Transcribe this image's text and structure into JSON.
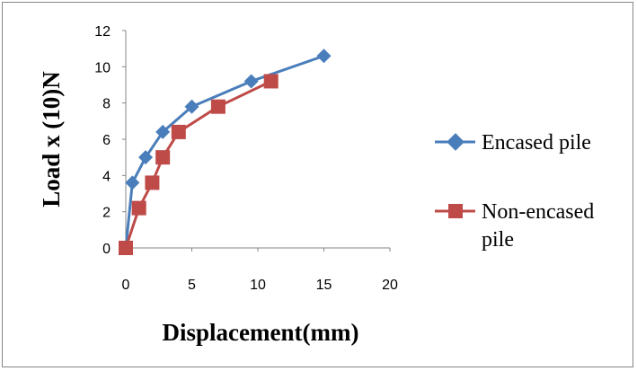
{
  "chart_data": {
    "type": "line",
    "title": "",
    "xlabel": "Displacement(mm)",
    "ylabel": "Load x (10)N",
    "xlim": [
      0,
      20
    ],
    "ylim": [
      0,
      12
    ],
    "x_ticks": [
      0,
      5,
      10,
      15,
      20
    ],
    "y_ticks": [
      0,
      2,
      4,
      6,
      8,
      10,
      12
    ],
    "grid": false,
    "legend_position": "right",
    "series": [
      {
        "name": "Encased pile",
        "color": "#4a7ebb",
        "marker": "diamond",
        "points": [
          [
            0,
            0
          ],
          [
            0.5,
            3.6
          ],
          [
            1.5,
            5.0
          ],
          [
            2.8,
            6.4
          ],
          [
            5.0,
            7.8
          ],
          [
            9.5,
            9.2
          ],
          [
            15.0,
            10.6
          ]
        ]
      },
      {
        "name": "Non-encased pile",
        "color": "#be4b48",
        "marker": "square",
        "points": [
          [
            0,
            0
          ],
          [
            1.0,
            2.2
          ],
          [
            2.0,
            3.6
          ],
          [
            2.8,
            5.0
          ],
          [
            4.0,
            6.4
          ],
          [
            7.0,
            7.8
          ],
          [
            11.0,
            9.2
          ]
        ]
      }
    ]
  }
}
